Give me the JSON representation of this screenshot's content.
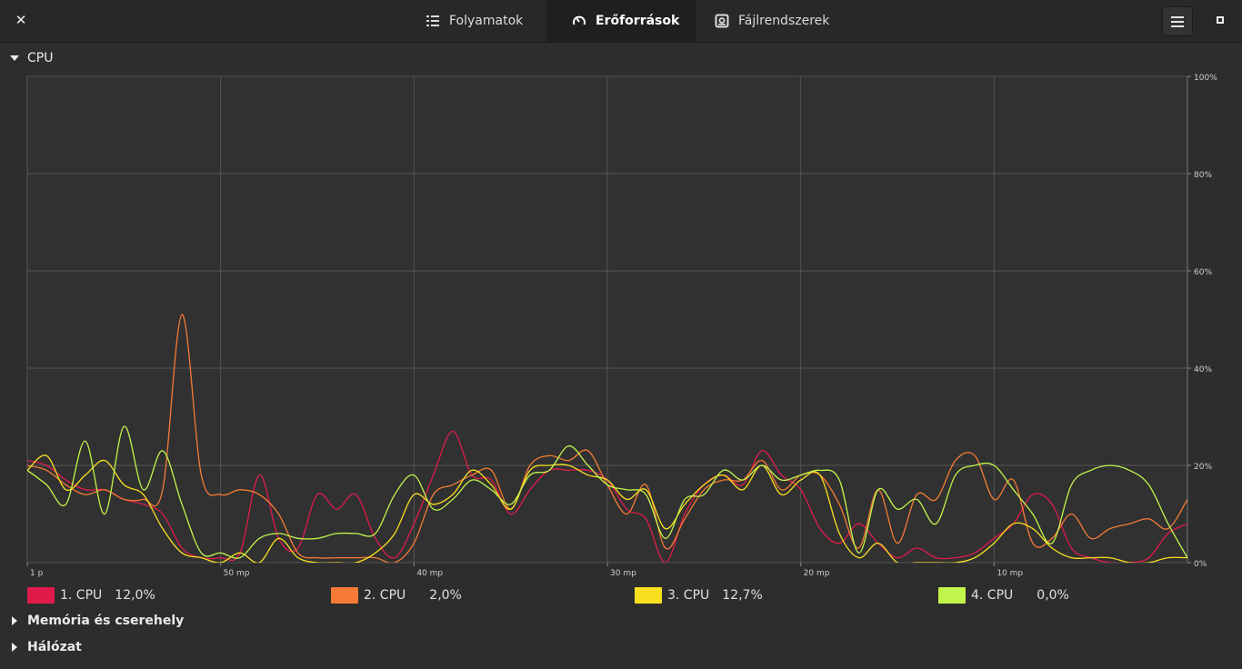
{
  "header": {
    "close_label": "✕",
    "tabs": [
      {
        "label": "Folyamatok",
        "icon": "list-icon"
      },
      {
        "label": "Erőforrások",
        "icon": "gauge-icon",
        "active": true
      },
      {
        "label": "Fájlrendszerek",
        "icon": "disk-icon"
      }
    ],
    "menu_icon": "hamburger-menu-icon",
    "maximize_icon": "maximize-icon"
  },
  "sections": {
    "cpu": {
      "label": "CPU",
      "expanded": true
    },
    "memory": {
      "label": "Memória és cserehely",
      "expanded": false
    },
    "network": {
      "label": "Hálózat",
      "expanded": false
    }
  },
  "chart_data": {
    "type": "line",
    "title": "",
    "ylim": [
      0,
      100
    ],
    "y_ticks": [
      "100%",
      "80%",
      "60%",
      "40%",
      "20%",
      "0%"
    ],
    "x_ticks": [
      "1 p",
      "50 mp",
      "40 mp",
      "30 mp",
      "20 mp",
      "10 mp"
    ],
    "x_range_seconds": [
      60,
      0
    ],
    "grid": true,
    "series": [
      {
        "name": "1. CPU",
        "color": "#e01b4c",
        "values": [
          [
            60,
            21
          ],
          [
            59,
            20
          ],
          [
            58,
            17
          ],
          [
            57,
            15
          ],
          [
            56,
            15
          ],
          [
            55,
            13
          ],
          [
            54,
            12
          ],
          [
            53,
            10
          ],
          [
            52,
            3
          ],
          [
            51,
            1
          ],
          [
            50,
            1
          ],
          [
            49,
            2
          ],
          [
            48,
            18
          ],
          [
            47,
            5
          ],
          [
            46,
            3
          ],
          [
            45,
            14
          ],
          [
            44,
            11
          ],
          [
            43,
            14
          ],
          [
            42,
            5
          ],
          [
            41,
            1
          ],
          [
            40,
            8
          ],
          [
            39,
            18
          ],
          [
            38,
            27
          ],
          [
            37,
            18
          ],
          [
            36,
            17
          ],
          [
            35,
            10
          ],
          [
            34,
            15
          ],
          [
            33,
            19
          ],
          [
            32,
            19
          ],
          [
            31,
            19
          ],
          [
            30,
            17
          ],
          [
            29,
            11
          ],
          [
            28,
            9
          ],
          [
            27,
            0
          ],
          [
            26,
            10
          ],
          [
            25,
            16
          ],
          [
            24,
            18
          ],
          [
            23,
            16
          ],
          [
            22,
            23
          ],
          [
            21,
            18
          ],
          [
            20,
            15
          ],
          [
            19,
            7
          ],
          [
            18,
            4
          ],
          [
            17,
            8
          ],
          [
            16,
            4
          ],
          [
            15,
            1
          ],
          [
            14,
            3
          ],
          [
            13,
            1
          ],
          [
            12,
            1
          ],
          [
            11,
            2
          ],
          [
            10,
            5
          ],
          [
            9,
            8
          ],
          [
            8,
            14
          ],
          [
            7,
            12
          ],
          [
            6,
            3
          ],
          [
            5,
            1
          ],
          [
            4,
            0
          ],
          [
            3,
            0
          ],
          [
            2,
            1
          ],
          [
            1,
            6
          ],
          [
            0,
            8
          ]
        ]
      },
      {
        "name": "2. CPU",
        "color": "#f57b35",
        "values": [
          [
            60,
            20
          ],
          [
            59,
            19
          ],
          [
            58,
            16
          ],
          [
            57,
            14
          ],
          [
            56,
            15
          ],
          [
            55,
            13
          ],
          [
            54,
            13
          ],
          [
            53,
            15
          ],
          [
            52,
            51
          ],
          [
            51,
            18
          ],
          [
            50,
            14
          ],
          [
            49,
            15
          ],
          [
            48,
            14
          ],
          [
            47,
            10
          ],
          [
            46,
            2
          ],
          [
            45,
            1
          ],
          [
            44,
            1
          ],
          [
            43,
            1
          ],
          [
            42,
            1
          ],
          [
            41,
            0
          ],
          [
            40,
            4
          ],
          [
            39,
            14
          ],
          [
            38,
            16
          ],
          [
            37,
            18
          ],
          [
            36,
            19
          ],
          [
            35,
            11
          ],
          [
            34,
            20
          ],
          [
            33,
            22
          ],
          [
            32,
            21
          ],
          [
            31,
            23
          ],
          [
            30,
            16
          ],
          [
            29,
            10
          ],
          [
            28,
            16
          ],
          [
            27,
            3
          ],
          [
            26,
            9
          ],
          [
            25,
            15
          ],
          [
            24,
            17
          ],
          [
            23,
            17
          ],
          [
            22,
            21
          ],
          [
            21,
            15
          ],
          [
            20,
            18
          ],
          [
            19,
            18
          ],
          [
            18,
            12
          ],
          [
            17,
            3
          ],
          [
            16,
            15
          ],
          [
            15,
            4
          ],
          [
            14,
            14
          ],
          [
            13,
            13
          ],
          [
            12,
            21
          ],
          [
            11,
            22
          ],
          [
            10,
            13
          ],
          [
            9,
            17
          ],
          [
            8,
            4
          ],
          [
            7,
            5
          ],
          [
            6,
            10
          ],
          [
            5,
            5
          ],
          [
            4,
            7
          ],
          [
            3,
            8
          ],
          [
            2,
            9
          ],
          [
            1,
            7
          ],
          [
            0,
            13
          ]
        ]
      },
      {
        "name": "3. CPU",
        "color": "#f8e021",
        "values": [
          [
            60,
            19
          ],
          [
            59,
            22
          ],
          [
            58,
            15
          ],
          [
            57,
            18
          ],
          [
            56,
            21
          ],
          [
            55,
            16
          ],
          [
            54,
            14
          ],
          [
            53,
            7
          ],
          [
            52,
            2
          ],
          [
            51,
            1
          ],
          [
            50,
            0
          ],
          [
            49,
            2
          ],
          [
            48,
            0
          ],
          [
            47,
            5
          ],
          [
            46,
            1
          ],
          [
            45,
            0
          ],
          [
            44,
            0
          ],
          [
            43,
            0
          ],
          [
            42,
            2
          ],
          [
            41,
            6
          ],
          [
            40,
            14
          ],
          [
            39,
            12
          ],
          [
            38,
            14
          ],
          [
            37,
            19
          ],
          [
            36,
            16
          ],
          [
            35,
            11
          ],
          [
            34,
            19
          ],
          [
            33,
            20
          ],
          [
            32,
            20
          ],
          [
            31,
            18
          ],
          [
            30,
            17
          ],
          [
            29,
            13
          ],
          [
            28,
            15
          ],
          [
            27,
            7
          ],
          [
            26,
            12
          ],
          [
            25,
            16
          ],
          [
            24,
            18
          ],
          [
            23,
            15
          ],
          [
            22,
            20
          ],
          [
            21,
            14
          ],
          [
            20,
            17
          ],
          [
            19,
            18
          ],
          [
            18,
            6
          ],
          [
            17,
            1
          ],
          [
            16,
            4
          ],
          [
            15,
            0
          ],
          [
            14,
            0
          ],
          [
            13,
            0
          ],
          [
            12,
            0
          ],
          [
            11,
            1
          ],
          [
            10,
            4
          ],
          [
            9,
            8
          ],
          [
            8,
            7
          ],
          [
            7,
            3
          ],
          [
            6,
            1
          ],
          [
            5,
            1
          ],
          [
            4,
            1
          ],
          [
            3,
            0
          ],
          [
            2,
            0
          ],
          [
            1,
            1
          ],
          [
            0,
            1
          ]
        ]
      },
      {
        "name": "4. CPU",
        "color": "#c1f54b",
        "values": [
          [
            60,
            19
          ],
          [
            59,
            16
          ],
          [
            58,
            12
          ],
          [
            57,
            25
          ],
          [
            56,
            10
          ],
          [
            55,
            28
          ],
          [
            54,
            15
          ],
          [
            53,
            23
          ],
          [
            52,
            12
          ],
          [
            51,
            2
          ],
          [
            50,
            2
          ],
          [
            49,
            1
          ],
          [
            48,
            5
          ],
          [
            47,
            6
          ],
          [
            46,
            5
          ],
          [
            45,
            5
          ],
          [
            44,
            6
          ],
          [
            43,
            6
          ],
          [
            42,
            6
          ],
          [
            41,
            14
          ],
          [
            40,
            18
          ],
          [
            39,
            11
          ],
          [
            38,
            13
          ],
          [
            37,
            17
          ],
          [
            36,
            15
          ],
          [
            35,
            12
          ],
          [
            34,
            18
          ],
          [
            33,
            19
          ],
          [
            32,
            24
          ],
          [
            31,
            20
          ],
          [
            30,
            16
          ],
          [
            29,
            15
          ],
          [
            28,
            14
          ],
          [
            27,
            5
          ],
          [
            26,
            13
          ],
          [
            25,
            14
          ],
          [
            24,
            19
          ],
          [
            23,
            17
          ],
          [
            22,
            20
          ],
          [
            21,
            17
          ],
          [
            20,
            18
          ],
          [
            19,
            19
          ],
          [
            18,
            17
          ],
          [
            17,
            2
          ],
          [
            16,
            15
          ],
          [
            15,
            11
          ],
          [
            14,
            13
          ],
          [
            13,
            8
          ],
          [
            12,
            18
          ],
          [
            11,
            20
          ],
          [
            10,
            20
          ],
          [
            9,
            15
          ],
          [
            8,
            10
          ],
          [
            7,
            4
          ],
          [
            6,
            16
          ],
          [
            5,
            19
          ],
          [
            4,
            20
          ],
          [
            3,
            19
          ],
          [
            2,
            16
          ],
          [
            1,
            8
          ],
          [
            0,
            1
          ]
        ]
      }
    ]
  },
  "legend": [
    {
      "label": "1. CPU",
      "value": "12,0%",
      "color": "#e01b4c"
    },
    {
      "label": "2. CPU",
      "value": "2,0%",
      "color": "#f57b35"
    },
    {
      "label": "3. CPU",
      "value": "12,7%",
      "color": "#f8e021"
    },
    {
      "label": "4. CPU",
      "value": "0,0%",
      "color": "#c1f54b"
    }
  ]
}
